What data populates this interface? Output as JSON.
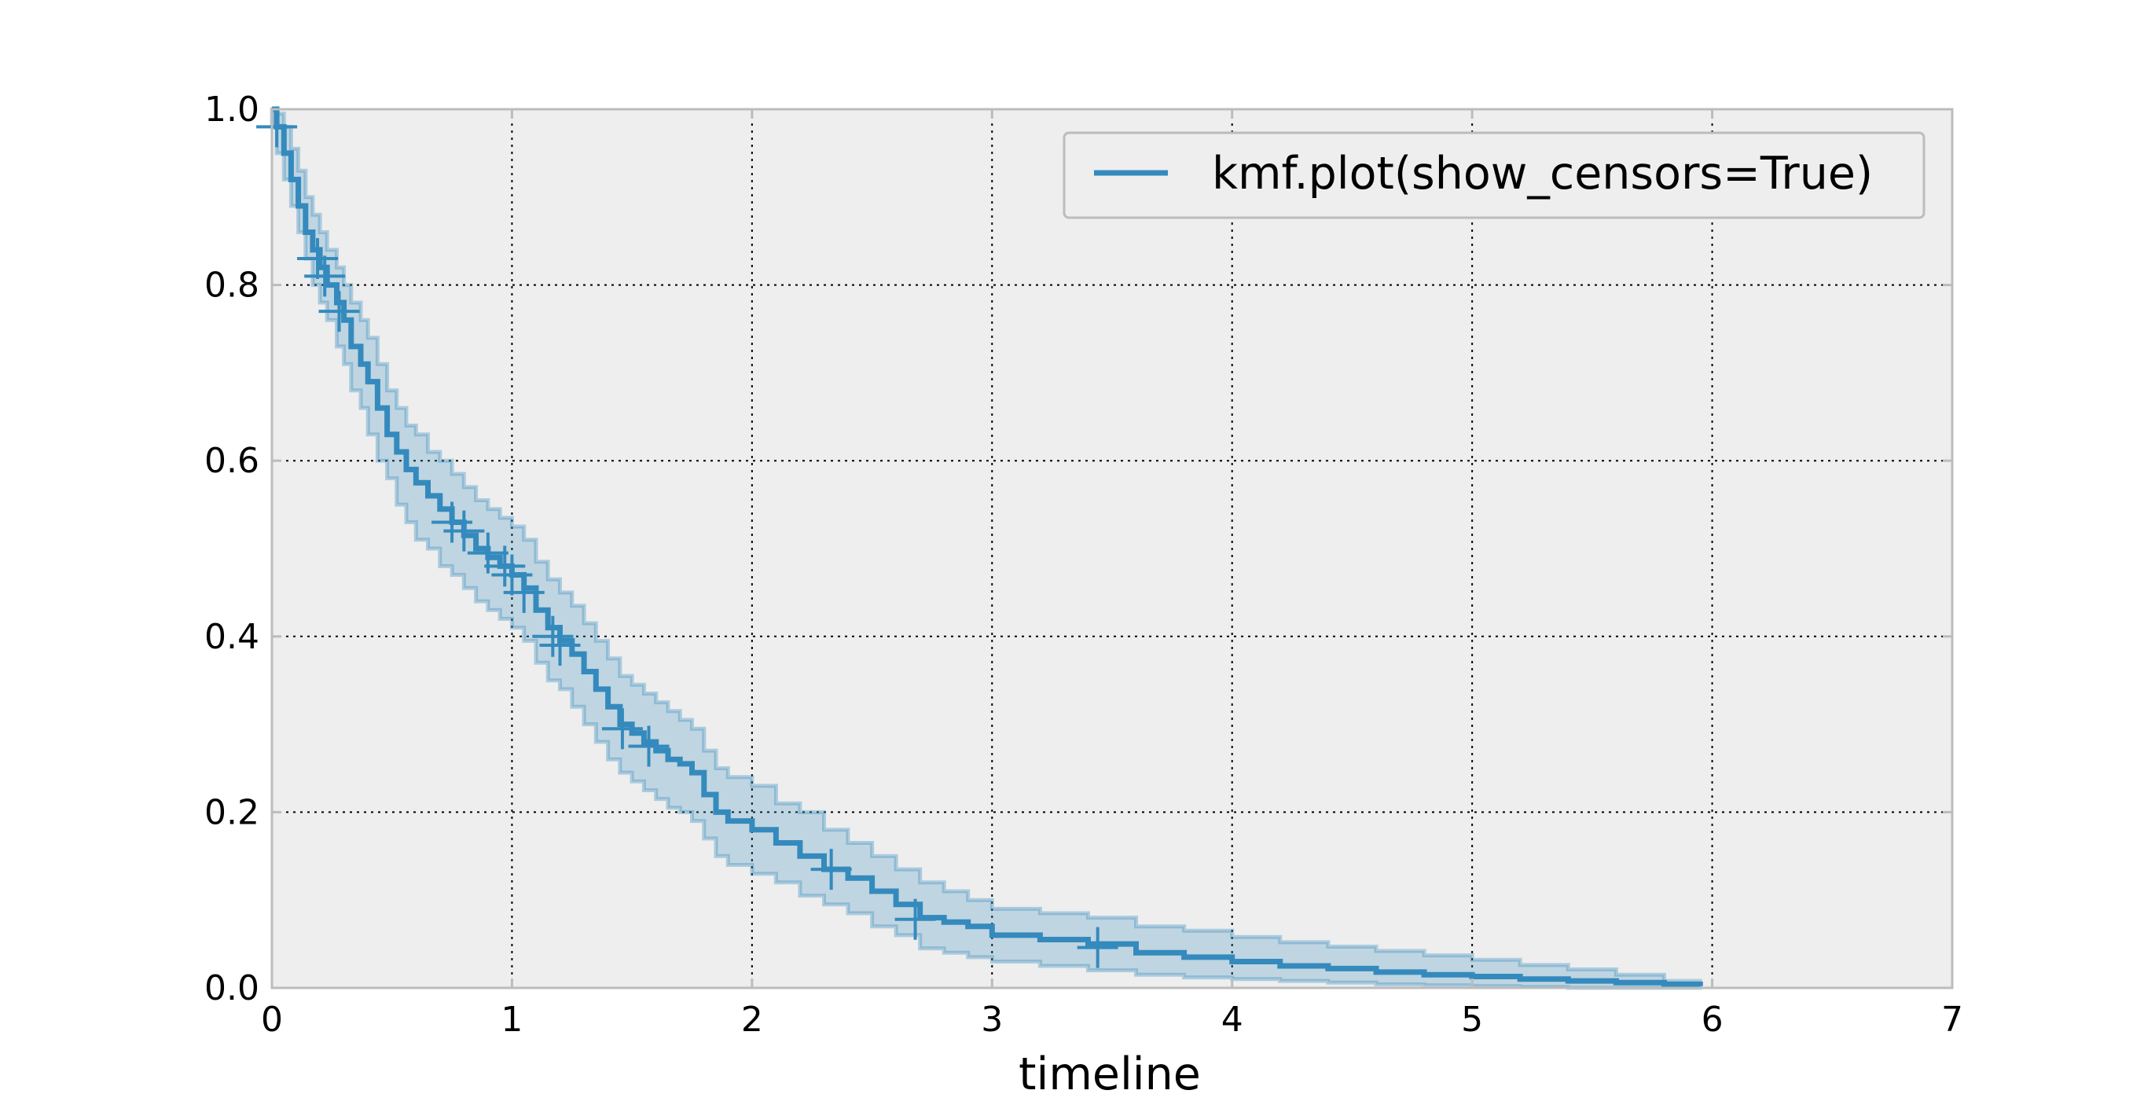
{
  "chart_data": {
    "type": "line",
    "title": "",
    "xlabel": "timeline",
    "ylabel": "",
    "xlim": [
      0,
      7
    ],
    "ylim": [
      0.0,
      1.0
    ],
    "x_ticks": [
      "0",
      "1",
      "2",
      "3",
      "4",
      "5",
      "6",
      "7"
    ],
    "y_ticks": [
      "0.0",
      "0.2",
      "0.4",
      "0.6",
      "0.8",
      "1.0"
    ],
    "grid": true,
    "legend_position": "top-right",
    "colors": {
      "line": "#348abd",
      "band": "#348abd",
      "plot_background": "#eeeeee",
      "frame": "#bcbcbc"
    },
    "series": [
      {
        "name": "kmf.plot(show_censors=True)",
        "x": [
          0.0,
          0.02,
          0.05,
          0.08,
          0.11,
          0.14,
          0.17,
          0.2,
          0.23,
          0.27,
          0.3,
          0.33,
          0.37,
          0.4,
          0.44,
          0.48,
          0.52,
          0.56,
          0.6,
          0.65,
          0.7,
          0.75,
          0.8,
          0.85,
          0.9,
          0.95,
          1.0,
          1.05,
          1.1,
          1.15,
          1.2,
          1.25,
          1.3,
          1.35,
          1.4,
          1.45,
          1.5,
          1.55,
          1.6,
          1.65,
          1.7,
          1.75,
          1.8,
          1.85,
          1.9,
          2.0,
          2.1,
          2.2,
          2.3,
          2.4,
          2.5,
          2.6,
          2.7,
          2.8,
          2.9,
          3.0,
          3.2,
          3.4,
          3.6,
          3.8,
          4.0,
          4.2,
          4.4,
          4.6,
          4.8,
          5.0,
          5.2,
          5.4,
          5.6,
          5.8,
          5.95
        ],
        "y": [
          1.0,
          0.98,
          0.95,
          0.92,
          0.89,
          0.86,
          0.84,
          0.82,
          0.8,
          0.78,
          0.76,
          0.73,
          0.71,
          0.69,
          0.66,
          0.63,
          0.61,
          0.59,
          0.575,
          0.56,
          0.545,
          0.53,
          0.515,
          0.5,
          0.49,
          0.48,
          0.47,
          0.455,
          0.43,
          0.41,
          0.395,
          0.38,
          0.36,
          0.34,
          0.32,
          0.3,
          0.29,
          0.28,
          0.27,
          0.26,
          0.255,
          0.245,
          0.22,
          0.2,
          0.19,
          0.18,
          0.165,
          0.15,
          0.135,
          0.125,
          0.11,
          0.095,
          0.08,
          0.075,
          0.07,
          0.06,
          0.055,
          0.05,
          0.04,
          0.035,
          0.03,
          0.025,
          0.022,
          0.018,
          0.015,
          0.013,
          0.01,
          0.008,
          0.006,
          0.004,
          0.002
        ],
        "ci_lower": [
          0.98,
          0.95,
          0.92,
          0.89,
          0.86,
          0.83,
          0.8,
          0.78,
          0.76,
          0.73,
          0.71,
          0.68,
          0.66,
          0.63,
          0.6,
          0.58,
          0.55,
          0.53,
          0.51,
          0.5,
          0.48,
          0.47,
          0.455,
          0.44,
          0.43,
          0.42,
          0.41,
          0.395,
          0.37,
          0.35,
          0.34,
          0.32,
          0.3,
          0.28,
          0.26,
          0.245,
          0.235,
          0.225,
          0.215,
          0.205,
          0.2,
          0.19,
          0.17,
          0.15,
          0.14,
          0.13,
          0.12,
          0.105,
          0.095,
          0.085,
          0.07,
          0.06,
          0.045,
          0.04,
          0.035,
          0.03,
          0.025,
          0.02,
          0.015,
          0.012,
          0.01,
          0.008,
          0.006,
          0.004,
          0.003,
          0.002,
          0.001,
          0.0,
          0.0,
          0.0,
          0.0
        ],
        "ci_upper": [
          1.0,
          0.995,
          0.98,
          0.955,
          0.93,
          0.9,
          0.88,
          0.86,
          0.84,
          0.82,
          0.8,
          0.78,
          0.76,
          0.74,
          0.71,
          0.68,
          0.66,
          0.64,
          0.63,
          0.61,
          0.6,
          0.585,
          0.57,
          0.555,
          0.545,
          0.535,
          0.525,
          0.51,
          0.485,
          0.465,
          0.45,
          0.435,
          0.415,
          0.395,
          0.375,
          0.355,
          0.345,
          0.335,
          0.325,
          0.315,
          0.305,
          0.295,
          0.27,
          0.25,
          0.24,
          0.23,
          0.21,
          0.2,
          0.18,
          0.165,
          0.15,
          0.135,
          0.12,
          0.11,
          0.1,
          0.09,
          0.085,
          0.08,
          0.07,
          0.065,
          0.058,
          0.052,
          0.047,
          0.042,
          0.037,
          0.032,
          0.026,
          0.021,
          0.015,
          0.008,
          0.0
        ],
        "censors": [
          {
            "x": 0.02,
            "y": 0.98
          },
          {
            "x": 0.19,
            "y": 0.83
          },
          {
            "x": 0.22,
            "y": 0.81
          },
          {
            "x": 0.28,
            "y": 0.77
          },
          {
            "x": 0.75,
            "y": 0.53
          },
          {
            "x": 0.8,
            "y": 0.52
          },
          {
            "x": 0.9,
            "y": 0.495
          },
          {
            "x": 0.97,
            "y": 0.48
          },
          {
            "x": 1.0,
            "y": 0.47
          },
          {
            "x": 1.05,
            "y": 0.45
          },
          {
            "x": 1.17,
            "y": 0.4
          },
          {
            "x": 1.2,
            "y": 0.39
          },
          {
            "x": 1.46,
            "y": 0.295
          },
          {
            "x": 1.57,
            "y": 0.275
          },
          {
            "x": 2.33,
            "y": 0.135
          },
          {
            "x": 2.68,
            "y": 0.078
          },
          {
            "x": 3.44,
            "y": 0.046
          }
        ]
      }
    ]
  }
}
